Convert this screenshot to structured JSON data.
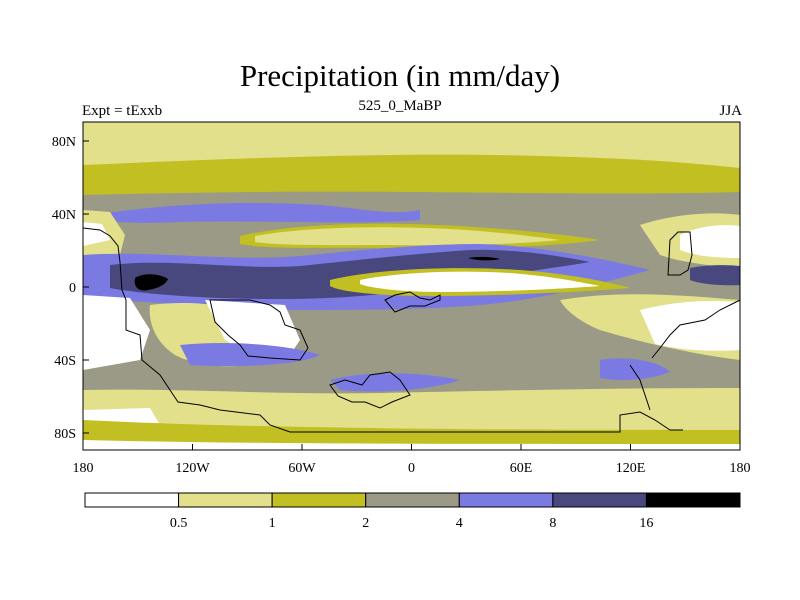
{
  "title": "Precipitation (in mm/day)",
  "left_label": "Expt = tExxb",
  "center_label": "525_0_MaBP",
  "right_label": "JJA",
  "lat_labels": [
    "80N",
    "40N",
    "0",
    "40S",
    "80S"
  ],
  "lon_labels": [
    "180",
    "120W",
    "60W",
    "0",
    "60E",
    "120E",
    "180"
  ],
  "colorbar": {
    "boundaries": [
      "0.5",
      "1",
      "2",
      "4",
      "8",
      "16"
    ],
    "colors": [
      "#ffffff",
      "#e2e08a",
      "#c2bf22",
      "#9a9a86",
      "#7a7ae2",
      "#48487f",
      "#000000"
    ]
  },
  "colors": {
    "white": "#ffffff",
    "pale_yellow": "#e2e08a",
    "olive": "#c2bf22",
    "gray": "#9a9a86",
    "blue": "#7a7ae2",
    "dark_blue": "#48487f",
    "black": "#000000"
  }
}
